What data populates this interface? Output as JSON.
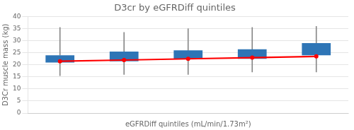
{
  "chart_data": {
    "type": "box",
    "title": "D3cr by eGFRDiff quintiles",
    "xlabel": "eGFRDiff quintiles (mL/min/1.73m²)",
    "ylabel": "D3Cr muscle mass (kg)",
    "categories": [
      null,
      null,
      null,
      null,
      null
    ],
    "series": [
      {
        "type": "whisker",
        "color": "#888888",
        "low": [
          15.5,
          16.0,
          16.0,
          17.0,
          17.0
        ],
        "high": [
          35.5,
          33.5,
          35.0,
          35.5,
          36.0
        ]
      },
      {
        "type": "box",
        "color": "#2E75B6",
        "q1": [
          21.0,
          21.5,
          22.5,
          22.5,
          24.0
        ],
        "q3": [
          24.0,
          25.5,
          26.0,
          26.5,
          29.0
        ]
      },
      {
        "type": "line",
        "color": "#FF0000",
        "marker": "circle",
        "values": [
          21.5,
          22.0,
          22.5,
          23.0,
          23.5
        ]
      }
    ],
    "ylim": [
      0,
      40
    ],
    "yticks": [
      0,
      5,
      10,
      15,
      20,
      25,
      30,
      35,
      40
    ],
    "grid": true,
    "tick_labels": "y"
  }
}
